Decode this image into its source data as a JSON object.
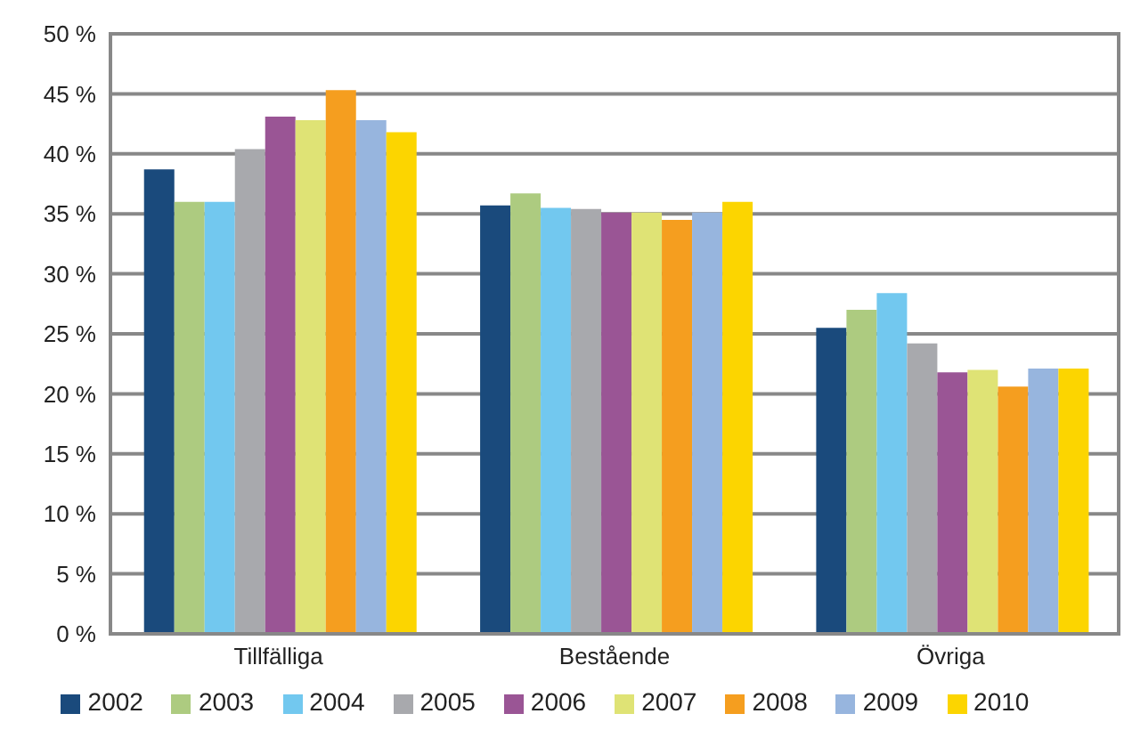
{
  "chart_data": {
    "type": "bar",
    "categories": [
      "Tillfälliga",
      "Bestående",
      "Övriga"
    ],
    "series": [
      {
        "name": "2002",
        "color": "#1a4a7c",
        "values": [
          38.7,
          35.7,
          25.5
        ]
      },
      {
        "name": "2003",
        "color": "#adcb80",
        "values": [
          36.0,
          36.7,
          27.0
        ]
      },
      {
        "name": "2004",
        "color": "#72c8ef",
        "values": [
          36.0,
          35.5,
          28.4
        ]
      },
      {
        "name": "2005",
        "color": "#a8a9ad",
        "values": [
          40.4,
          35.4,
          24.2
        ]
      },
      {
        "name": "2006",
        "color": "#9a5595",
        "values": [
          43.1,
          35.1,
          21.8
        ]
      },
      {
        "name": "2007",
        "color": "#dfe375",
        "values": [
          42.8,
          35.1,
          22.0
        ]
      },
      {
        "name": "2008",
        "color": "#f59e1f",
        "values": [
          45.3,
          34.5,
          20.6
        ]
      },
      {
        "name": "2009",
        "color": "#97b5de",
        "values": [
          42.8,
          35.1,
          22.1
        ]
      },
      {
        "name": "2010",
        "color": "#fcd500",
        "values": [
          41.8,
          36.0,
          22.1
        ]
      }
    ],
    "ylim": [
      0,
      50
    ],
    "yticks": [
      {
        "value": 0,
        "label": "0 %"
      },
      {
        "value": 5,
        "label": "5 %"
      },
      {
        "value": 10,
        "label": "10 %"
      },
      {
        "value": 15,
        "label": "15 %"
      },
      {
        "value": 20,
        "label": "20 %"
      },
      {
        "value": 25,
        "label": "25 %"
      },
      {
        "value": 30,
        "label": "30 %"
      },
      {
        "value": 35,
        "label": "35 %"
      },
      {
        "value": 40,
        "label": "40 %"
      },
      {
        "value": 45,
        "label": "45 %"
      },
      {
        "value": 50,
        "label": "50 %"
      }
    ],
    "grid": "y",
    "legend": "bottom"
  }
}
